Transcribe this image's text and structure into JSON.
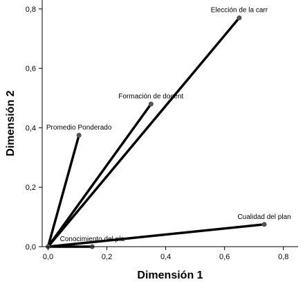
{
  "chart_data": {
    "type": "scatter",
    "xlabel": "Dimensión 1",
    "ylabel": "Dimensión 2",
    "xlim": [
      -0.02,
      0.85
    ],
    "ylim": [
      0.0,
      0.83
    ],
    "xticks": [
      0.0,
      0.2,
      0.4,
      0.6,
      0.8
    ],
    "yticks": [
      0.0,
      0.2,
      0.4,
      0.6,
      0.8
    ],
    "xtick_labels": [
      "0,0",
      "0,2",
      "0,4",
      "0,6",
      "0,8"
    ],
    "ytick_labels": [
      "0,0",
      "0,2",
      "0,4",
      "0,6",
      "0,8"
    ],
    "grid": false,
    "vectors_from_origin": true,
    "colors": {
      "line": "#000000",
      "point": "#555555",
      "axis": "#000000"
    },
    "points": [
      {
        "name": "Elección de la carr",
        "x": 0.65,
        "y": 0.77
      },
      {
        "name": "Formación de docent",
        "x": 0.35,
        "y": 0.48
      },
      {
        "name": "Promedio Ponderado",
        "x": 0.105,
        "y": 0.375
      },
      {
        "name": "Cualidad del plan",
        "x": 0.735,
        "y": 0.075
      },
      {
        "name": "Conocimiento del pla",
        "x": 0.15,
        "y": 0.0
      }
    ]
  }
}
